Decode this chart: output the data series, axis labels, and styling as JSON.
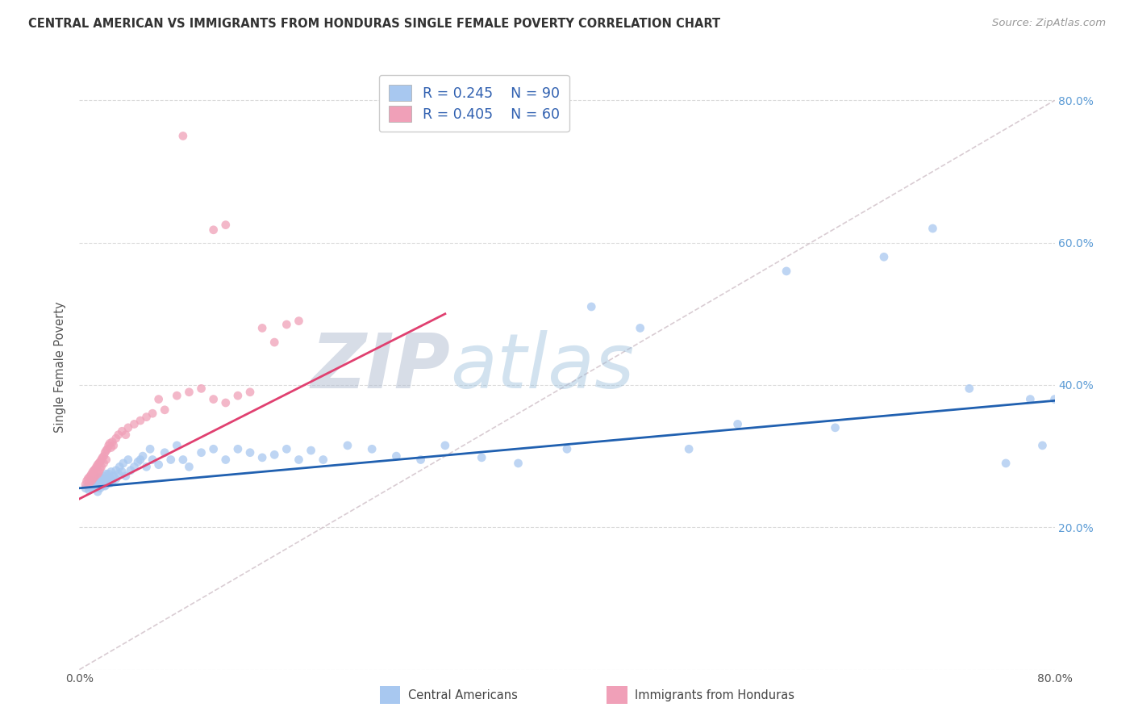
{
  "title": "CENTRAL AMERICAN VS IMMIGRANTS FROM HONDURAS SINGLE FEMALE POVERTY CORRELATION CHART",
  "source": "Source: ZipAtlas.com",
  "ylabel": "Single Female Poverty",
  "legend_blue_R": "R = 0.245",
  "legend_blue_N": "N = 90",
  "legend_pink_R": "R = 0.405",
  "legend_pink_N": "N = 60",
  "legend_label_blue": "Central Americans",
  "legend_label_pink": "Immigrants from Honduras",
  "blue_color": "#a8c8f0",
  "pink_color": "#f0a0b8",
  "blue_line_color": "#2060b0",
  "pink_line_color": "#e04070",
  "diag_line_color": "#d0c0c8",
  "watermark_zip": "ZIP",
  "watermark_atlas": "atlas",
  "blue_scatter_x": [
    0.005,
    0.007,
    0.008,
    0.009,
    0.01,
    0.01,
    0.011,
    0.012,
    0.012,
    0.013,
    0.013,
    0.014,
    0.014,
    0.015,
    0.015,
    0.016,
    0.016,
    0.017,
    0.017,
    0.018,
    0.018,
    0.019,
    0.02,
    0.02,
    0.021,
    0.021,
    0.022,
    0.022,
    0.023,
    0.024,
    0.025,
    0.025,
    0.026,
    0.027,
    0.028,
    0.03,
    0.03,
    0.032,
    0.033,
    0.035,
    0.036,
    0.038,
    0.04,
    0.042,
    0.045,
    0.048,
    0.05,
    0.052,
    0.055,
    0.058,
    0.06,
    0.065,
    0.07,
    0.075,
    0.08,
    0.085,
    0.09,
    0.1,
    0.11,
    0.12,
    0.13,
    0.14,
    0.15,
    0.16,
    0.17,
    0.18,
    0.19,
    0.2,
    0.22,
    0.24,
    0.26,
    0.28,
    0.3,
    0.33,
    0.36,
    0.4,
    0.42,
    0.46,
    0.5,
    0.54,
    0.58,
    0.62,
    0.66,
    0.7,
    0.73,
    0.76,
    0.78,
    0.79,
    0.8,
    0.015
  ],
  "blue_scatter_y": [
    0.255,
    0.258,
    0.252,
    0.26,
    0.255,
    0.265,
    0.258,
    0.26,
    0.255,
    0.262,
    0.257,
    0.265,
    0.26,
    0.268,
    0.256,
    0.27,
    0.258,
    0.265,
    0.255,
    0.27,
    0.26,
    0.258,
    0.272,
    0.265,
    0.268,
    0.258,
    0.275,
    0.26,
    0.268,
    0.275,
    0.27,
    0.262,
    0.278,
    0.265,
    0.272,
    0.28,
    0.268,
    0.275,
    0.285,
    0.278,
    0.29,
    0.272,
    0.295,
    0.28,
    0.285,
    0.292,
    0.295,
    0.3,
    0.285,
    0.31,
    0.295,
    0.288,
    0.305,
    0.295,
    0.315,
    0.295,
    0.285,
    0.305,
    0.31,
    0.295,
    0.31,
    0.305,
    0.298,
    0.302,
    0.31,
    0.295,
    0.308,
    0.295,
    0.315,
    0.31,
    0.3,
    0.295,
    0.315,
    0.298,
    0.29,
    0.31,
    0.51,
    0.48,
    0.31,
    0.345,
    0.56,
    0.34,
    0.58,
    0.62,
    0.395,
    0.29,
    0.38,
    0.315,
    0.38,
    0.25
  ],
  "pink_scatter_x": [
    0.005,
    0.006,
    0.007,
    0.008,
    0.008,
    0.009,
    0.01,
    0.01,
    0.011,
    0.011,
    0.012,
    0.012,
    0.013,
    0.013,
    0.014,
    0.015,
    0.015,
    0.016,
    0.016,
    0.017,
    0.017,
    0.018,
    0.018,
    0.019,
    0.02,
    0.02,
    0.021,
    0.022,
    0.022,
    0.023,
    0.024,
    0.025,
    0.026,
    0.027,
    0.028,
    0.03,
    0.032,
    0.035,
    0.038,
    0.04,
    0.045,
    0.05,
    0.055,
    0.06,
    0.065,
    0.07,
    0.08,
    0.09,
    0.1,
    0.11,
    0.12,
    0.13,
    0.14,
    0.15,
    0.16,
    0.17,
    0.18,
    0.11,
    0.12,
    0.085
  ],
  "pink_scatter_y": [
    0.26,
    0.265,
    0.268,
    0.27,
    0.262,
    0.272,
    0.275,
    0.265,
    0.278,
    0.268,
    0.28,
    0.27,
    0.282,
    0.272,
    0.285,
    0.288,
    0.275,
    0.29,
    0.278,
    0.292,
    0.282,
    0.295,
    0.285,
    0.298,
    0.3,
    0.29,
    0.305,
    0.308,
    0.295,
    0.31,
    0.315,
    0.318,
    0.312,
    0.32,
    0.315,
    0.325,
    0.33,
    0.335,
    0.33,
    0.34,
    0.345,
    0.35,
    0.355,
    0.36,
    0.38,
    0.365,
    0.385,
    0.39,
    0.395,
    0.38,
    0.375,
    0.385,
    0.39,
    0.48,
    0.46,
    0.485,
    0.49,
    0.618,
    0.625,
    0.75
  ]
}
